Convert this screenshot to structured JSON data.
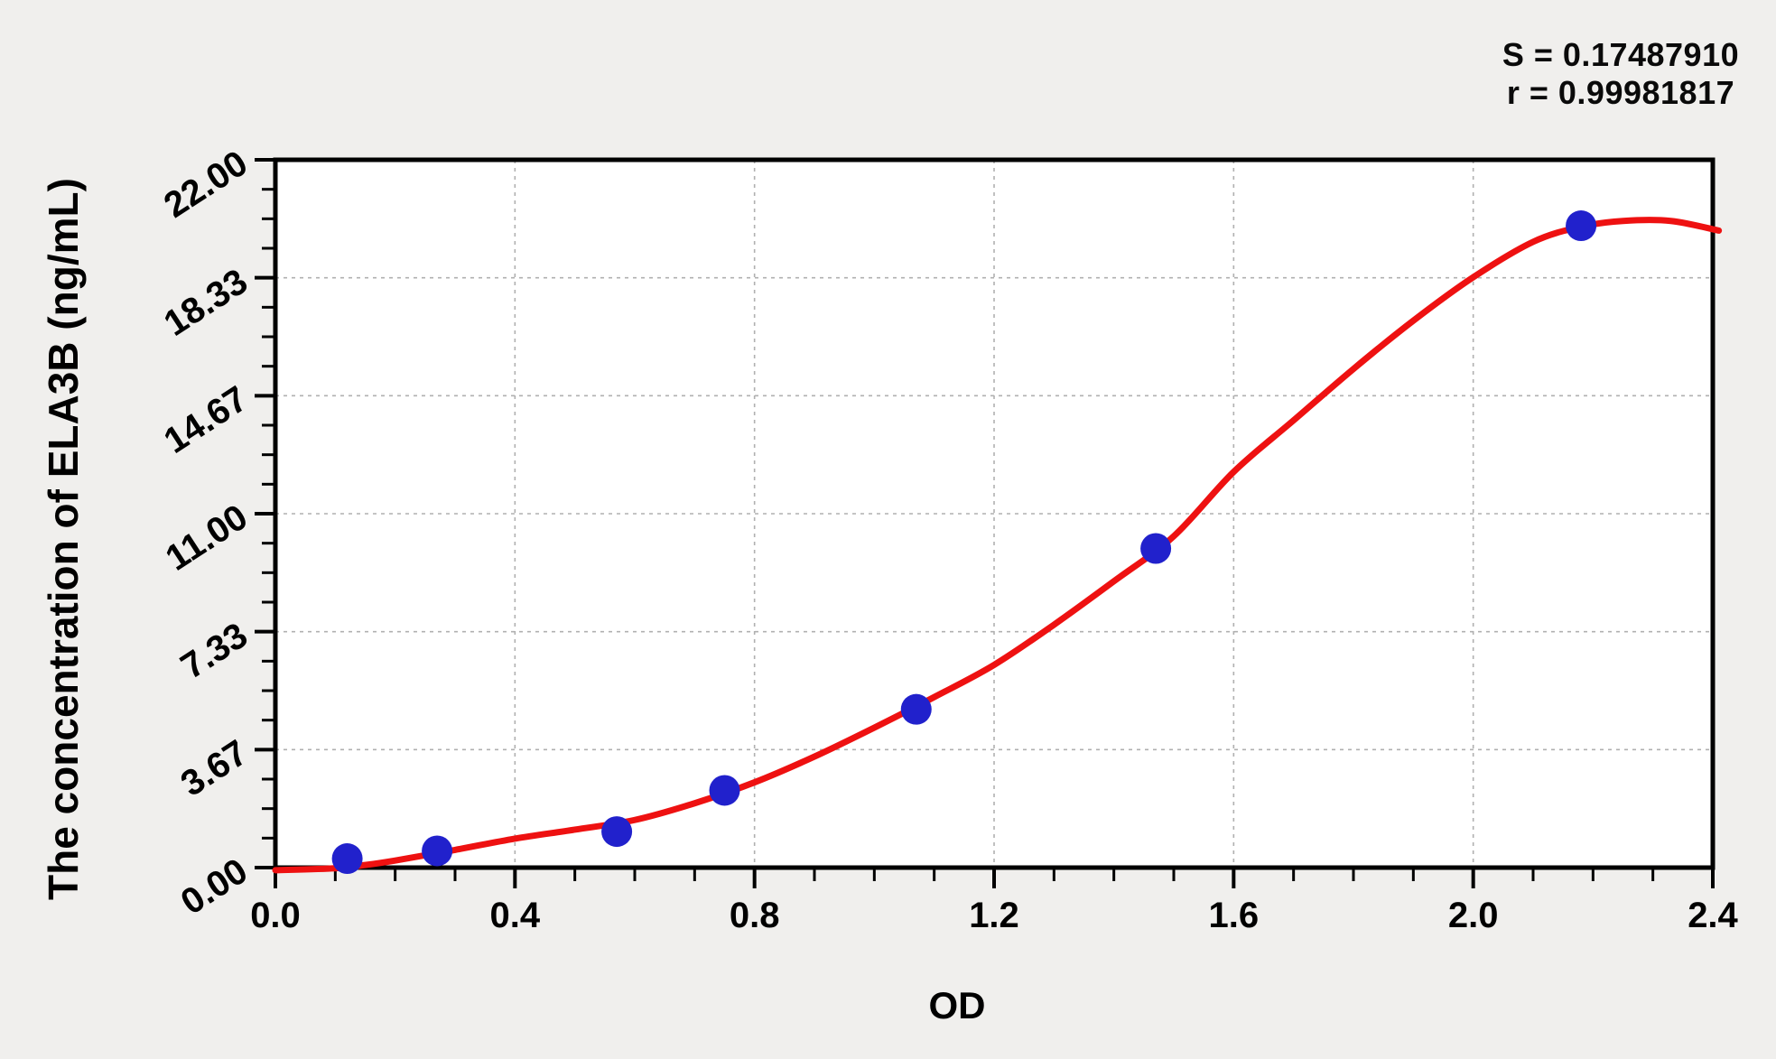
{
  "annotations": {
    "s_line": "S = 0.17487910",
    "r_line": "r = 0.99981817"
  },
  "chart_data": {
    "type": "scatter",
    "title": "",
    "xlabel": "OD",
    "ylabel": "The concentration of ELA3B (ng/mL)",
    "x_axis": {
      "min": 0,
      "max": 2.4,
      "major_step": 0.4,
      "minor_step": 0.1,
      "tick_labels": [
        "0.0",
        "0.4",
        "0.8",
        "1.2",
        "1.6",
        "2.0",
        "2.4"
      ]
    },
    "y_axis": {
      "min": 0,
      "max": 22,
      "major_step": 3.667,
      "minor_step": 0.917,
      "tick_labels": [
        "0.00",
        "3.67",
        "7.33",
        "11.00",
        "14.67",
        "18.33",
        "22.00"
      ]
    },
    "grid": "dashed gridlines at major ticks",
    "legend": "none",
    "stats": {
      "S": "0.17487910",
      "r": "0.99981817"
    },
    "points": [
      {
        "od": 0.12,
        "conc": 0.28
      },
      {
        "od": 0.27,
        "conc": 0.52
      },
      {
        "od": 0.57,
        "conc": 1.12
      },
      {
        "od": 0.75,
        "conc": 2.4
      },
      {
        "od": 1.07,
        "conc": 4.92
      },
      {
        "od": 1.47,
        "conc": 9.92
      },
      {
        "od": 2.18,
        "conc": 19.95
      }
    ],
    "fit_curve": {
      "od": [
        0.0,
        0.1,
        0.15,
        0.2,
        0.3,
        0.4,
        0.5,
        0.6,
        0.7,
        0.8,
        0.9,
        1.0,
        1.1,
        1.2,
        1.3,
        1.4,
        1.5,
        1.6,
        1.7,
        1.8,
        1.9,
        2.0,
        2.1,
        2.18,
        2.25,
        2.33,
        2.41
      ],
      "conc": [
        -0.08,
        -0.02,
        0.08,
        0.22,
        0.55,
        0.9,
        1.18,
        1.48,
        2.0,
        2.65,
        3.45,
        4.35,
        5.3,
        6.3,
        7.55,
        8.9,
        10.3,
        12.3,
        13.9,
        15.5,
        17.0,
        18.35,
        19.45,
        19.92,
        20.1,
        20.1,
        19.8
      ]
    },
    "colors": {
      "curve": "#ee1111",
      "points": "#2121cc",
      "background": "#f0efed",
      "plot_background": "#ffffff",
      "gridline": "#b0b0b0",
      "axis": "#000000"
    }
  }
}
